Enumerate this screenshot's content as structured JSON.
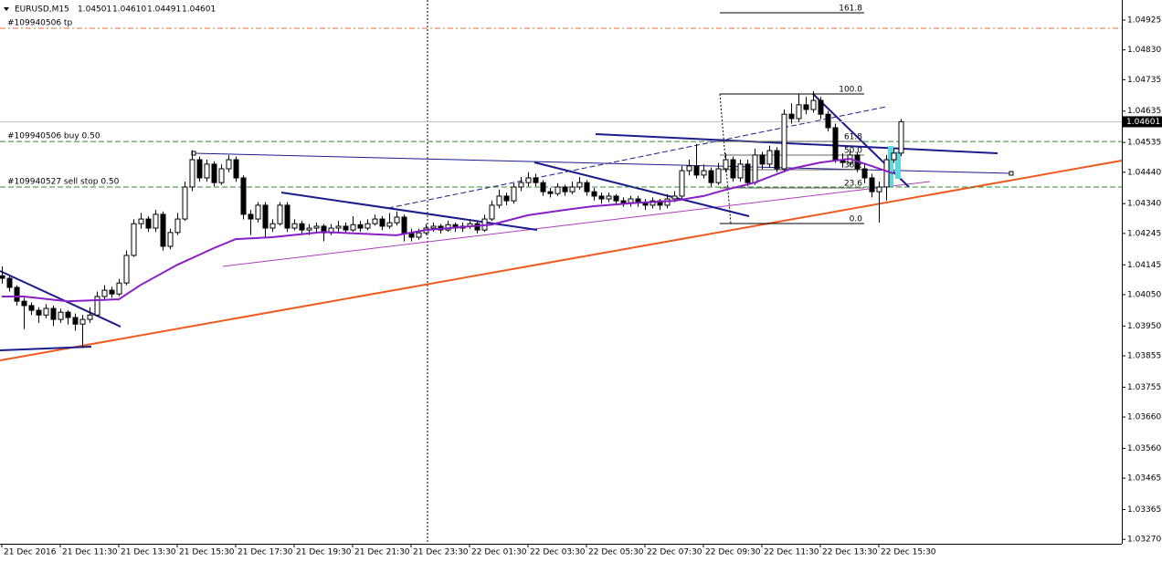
{
  "chart_data": {
    "type": "candlestick",
    "header": {
      "symbol": "EURUSD,M15",
      "ohlc": [
        "1.04501",
        "1.04610",
        "1.04491",
        "1.04601"
      ]
    },
    "up_color": "#ffffff",
    "down_color": "#000000",
    "wick_color": "#000000",
    "ylim": [
      1.03256,
      1.04989
    ],
    "yticks": [
      1.04925,
      {
        "value": 1.0483,
        "label": "1.04830"
      },
      1.04735,
      1.04635,
      1.04535,
      {
        "value": 1.0444,
        "label": "1.04440"
      },
      {
        "value": 1.0434,
        "label": "1.04340"
      },
      1.04245,
      1.04145,
      {
        "value": 1.0405,
        "label": "1.04050"
      },
      {
        "value": 1.0395,
        "label": "1.03950"
      },
      1.03855,
      1.03755,
      {
        "value": 1.0366,
        "label": "1.03660"
      },
      {
        "value": 1.0356,
        "label": "1.03560"
      },
      1.03465,
      1.03365,
      {
        "value": 1.0327,
        "label": "1.03270"
      }
    ],
    "xlim": [
      -0.25,
      153.25
    ],
    "xticks": [
      {
        "value": 0,
        "label": "21 Dec 2016"
      },
      {
        "value": 8,
        "label": "21 Dec 11:30"
      },
      {
        "value": 16,
        "label": "21 Dec 13:30"
      },
      {
        "value": 24,
        "label": "21 Dec 15:30"
      },
      {
        "value": 32,
        "label": "21 Dec 17:30"
      },
      {
        "value": 40,
        "label": "21 Dec 19:30"
      },
      {
        "value": 48,
        "label": "21 Dec 21:30"
      },
      {
        "value": 56,
        "label": "21 Dec 23:30"
      },
      {
        "value": 64,
        "label": "22 Dec 01:30"
      },
      {
        "value": 72,
        "label": "22 Dec 03:30"
      },
      {
        "value": 80,
        "label": "22 Dec 05:30"
      },
      {
        "value": 88,
        "label": "22 Dec 07:30"
      },
      {
        "value": 96,
        "label": "22 Dec 09:30"
      },
      {
        "value": 104,
        "label": "22 Dec 11:30"
      },
      {
        "value": 112,
        "label": "22 Dec 13:30"
      },
      {
        "value": 120,
        "label": "22 Dec 15:30"
      }
    ],
    "grid": false,
    "bid": 1.04601,
    "orders": [
      {
        "label": "#109940506 tp",
        "price": 1.04899,
        "color": "#e07030"
      },
      {
        "label": "#109940506 buy 0.50",
        "price": 1.04538,
        "color": "#2e8b2e"
      },
      {
        "label": "#109940527 sell stop 0.50",
        "price": 1.04393,
        "color": "#2e8b2e"
      }
    ],
    "fibo_levels": [
      "161.8",
      "100.0",
      "61.8",
      "50.0",
      "38.2",
      "23.6",
      "0.0"
    ],
    "ma": {
      "color": "#8a1ec8",
      "x": [
        0,
        3,
        9,
        16,
        19,
        24,
        29,
        32,
        37,
        44,
        54,
        58,
        67,
        72,
        77,
        81,
        87,
        92,
        96,
        99,
        103,
        108,
        112,
        116,
        119,
        122
      ],
      "values": [
        1.04044,
        1.04044,
        1.04029,
        1.04035,
        1.04081,
        1.04145,
        1.04198,
        1.04227,
        1.04233,
        1.0425,
        1.04239,
        1.04256,
        1.04273,
        1.04303,
        1.0432,
        1.04332,
        1.04343,
        1.04349,
        1.04364,
        1.04384,
        1.04407,
        1.04451,
        1.04471,
        1.04483,
        1.0446,
        1.04436
      ]
    },
    "candles": [
      [
        1.0411,
        1.0414,
        1.04085,
        1.04102
      ],
      [
        1.04102,
        1.0411,
        1.0406,
        1.04073
      ],
      [
        1.04073,
        1.0408,
        1.04015,
        1.04029
      ],
      [
        1.04029,
        1.0404,
        1.0394,
        1.04015
      ],
      [
        1.04015,
        1.04025,
        1.03985,
        1.04
      ],
      [
        1.04,
        1.0401,
        1.0396,
        1.03985
      ],
      [
        1.03985,
        1.0402,
        1.03975,
        1.04006
      ],
      [
        1.04006,
        1.04015,
        1.0395,
        1.03971
      ],
      [
        1.03971,
        1.04005,
        1.0396,
        1.03994
      ],
      [
        1.03994,
        1.04,
        1.03955,
        1.03977
      ],
      [
        1.03977,
        1.0399,
        1.03935,
        1.03956
      ],
      [
        1.03956,
        1.03985,
        1.0388,
        1.03971
      ],
      [
        1.03971,
        1.0401,
        1.0396,
        1.03985
      ],
      [
        1.03985,
        1.0406,
        1.0398,
        1.04044
      ],
      [
        1.04044,
        1.0408,
        1.0403,
        1.04064
      ],
      [
        1.04064,
        1.04075,
        1.0404,
        1.04052
      ],
      [
        1.04052,
        1.041,
        1.04045,
        1.04087
      ],
      [
        1.04087,
        1.0419,
        1.0408,
        1.04175
      ],
      [
        1.04175,
        1.0429,
        1.0417,
        1.04276
      ],
      [
        1.04276,
        1.0431,
        1.0426,
        1.04291
      ],
      [
        1.04291,
        1.043,
        1.0425,
        1.04262
      ],
      [
        1.04262,
        1.0432,
        1.0425,
        1.04306
      ],
      [
        1.04306,
        1.04315,
        1.0419,
        1.04204
      ],
      [
        1.04204,
        1.0426,
        1.04195,
        1.04248
      ],
      [
        1.04248,
        1.0431,
        1.0424,
        1.04291
      ],
      [
        1.04291,
        1.0441,
        1.04285,
        1.04393
      ],
      [
        1.04393,
        1.0451,
        1.0438,
        1.0448
      ],
      [
        1.0448,
        1.0449,
        1.0441,
        1.04422
      ],
      [
        1.04422,
        1.0448,
        1.0441,
        1.04466
      ],
      [
        1.04466,
        1.04475,
        1.04395,
        1.04407
      ],
      [
        1.04407,
        1.04465,
        1.044,
        1.04451
      ],
      [
        1.04451,
        1.04495,
        1.0444,
        1.0448
      ],
      [
        1.0448,
        1.0449,
        1.0441,
        1.04422
      ],
      [
        1.04422,
        1.0443,
        1.0429,
        1.04306
      ],
      [
        1.04306,
        1.0432,
        1.0424,
        1.04291
      ],
      [
        1.04291,
        1.04345,
        1.0428,
        1.04335
      ],
      [
        1.04335,
        1.04345,
        1.0423,
        1.04262
      ],
      [
        1.04262,
        1.0429,
        1.0425,
        1.04276
      ],
      [
        1.04276,
        1.04345,
        1.0427,
        1.04335
      ],
      [
        1.04335,
        1.04345,
        1.0425,
        1.04262
      ],
      [
        1.04262,
        1.0429,
        1.04255,
        1.04276
      ],
      [
        1.04276,
        1.04285,
        1.04245,
        1.04256
      ],
      [
        1.04256,
        1.04275,
        1.0424,
        1.04262
      ],
      [
        1.04262,
        1.0428,
        1.0425,
        1.04268
      ],
      [
        1.04268,
        1.04275,
        1.0422,
        1.04247
      ],
      [
        1.04247,
        1.04275,
        1.0424,
        1.04262
      ],
      [
        1.04262,
        1.04285,
        1.0425,
        1.04268
      ],
      [
        1.04268,
        1.0428,
        1.04245,
        1.04256
      ],
      [
        1.04256,
        1.043,
        1.0425,
        1.04273
      ],
      [
        1.04273,
        1.04285,
        1.0425,
        1.04262
      ],
      [
        1.04262,
        1.0429,
        1.04255,
        1.04276
      ],
      [
        1.04276,
        1.04305,
        1.0427,
        1.04291
      ],
      [
        1.04291,
        1.043,
        1.04255,
        1.04268
      ],
      [
        1.04268,
        1.0431,
        1.0426,
        1.04279
      ],
      [
        1.04279,
        1.04315,
        1.0427,
        1.04297
      ],
      [
        1.04297,
        1.04305,
        1.0422,
        1.04247
      ],
      [
        1.04247,
        1.0426,
        1.0422,
        1.04233
      ],
      [
        1.04233,
        1.0426,
        1.04225,
        1.04247
      ],
      [
        1.04247,
        1.04275,
        1.0424,
        1.04262
      ],
      [
        1.04262,
        1.0428,
        1.0425,
        1.04268
      ],
      [
        1.04268,
        1.04275,
        1.04245,
        1.04256
      ],
      [
        1.04256,
        1.04285,
        1.0425,
        1.04273
      ],
      [
        1.04273,
        1.0428,
        1.0425,
        1.04262
      ],
      [
        1.04262,
        1.0428,
        1.0425,
        1.04268
      ],
      [
        1.04268,
        1.0429,
        1.0426,
        1.04276
      ],
      [
        1.04276,
        1.04285,
        1.04245,
        1.04256
      ],
      [
        1.04256,
        1.04305,
        1.0425,
        1.04291
      ],
      [
        1.04291,
        1.0435,
        1.04285,
        1.04335
      ],
      [
        1.04335,
        1.04385,
        1.04325,
        1.04364
      ],
      [
        1.04364,
        1.04375,
        1.04335,
        1.04349
      ],
      [
        1.04349,
        1.04405,
        1.0434,
        1.04393
      ],
      [
        1.04393,
        1.04425,
        1.0438,
        1.04407
      ],
      [
        1.04407,
        1.0444,
        1.04395,
        1.04422
      ],
      [
        1.04422,
        1.04435,
        1.04395,
        1.04407
      ],
      [
        1.04407,
        1.04415,
        1.04365,
        1.04378
      ],
      [
        1.04378,
        1.0439,
        1.0436,
        1.04372
      ],
      [
        1.04372,
        1.04405,
        1.04365,
        1.04393
      ],
      [
        1.04393,
        1.044,
        1.04365,
        1.04378
      ],
      [
        1.04378,
        1.0441,
        1.0437,
        1.04393
      ],
      [
        1.04393,
        1.04425,
        1.04385,
        1.04407
      ],
      [
        1.04407,
        1.04415,
        1.04365,
        1.04378
      ],
      [
        1.04378,
        1.0439,
        1.0435,
        1.04364
      ],
      [
        1.04364,
        1.04375,
        1.0434,
        1.04355
      ],
      [
        1.04355,
        1.04375,
        1.04345,
        1.04364
      ],
      [
        1.04364,
        1.0437,
        1.04335,
        1.04349
      ],
      [
        1.04349,
        1.0436,
        1.0433,
        1.04343
      ],
      [
        1.04343,
        1.04365,
        1.0433,
        1.04355
      ],
      [
        1.04355,
        1.04365,
        1.0433,
        1.04343
      ],
      [
        1.04343,
        1.04355,
        1.0432,
        1.04335
      ],
      [
        1.04335,
        1.0436,
        1.04325,
        1.04349
      ],
      [
        1.04349,
        1.04355,
        1.0432,
        1.04335
      ],
      [
        1.04335,
        1.0437,
        1.04325,
        1.04355
      ],
      [
        1.04355,
        1.0438,
        1.04345,
        1.04364
      ],
      [
        1.04364,
        1.0446,
        1.04355,
        1.04445
      ],
      [
        1.04445,
        1.0448,
        1.0443,
        1.0446
      ],
      [
        1.0446,
        1.0453,
        1.0442,
        1.04431
      ],
      [
        1.04431,
        1.04465,
        1.0442,
        1.04445
      ],
      [
        1.04445,
        1.04455,
        1.04395,
        1.04407
      ],
      [
        1.04407,
        1.0447,
        1.044,
        1.04451
      ],
      [
        1.04451,
        1.045,
        1.0444,
        1.0448
      ],
      [
        1.0448,
        1.0449,
        1.0441,
        1.04422
      ],
      [
        1.04422,
        1.0448,
        1.0441,
        1.04466
      ],
      [
        1.04466,
        1.0448,
        1.04395,
        1.04407
      ],
      [
        1.04407,
        1.04515,
        1.044,
        1.04495
      ],
      [
        1.04495,
        1.04505,
        1.0445,
        1.04466
      ],
      [
        1.04466,
        1.04525,
        1.04455,
        1.04509
      ],
      [
        1.04509,
        1.0452,
        1.0444,
        1.04451
      ],
      [
        1.04451,
        1.0464,
        1.04445,
        1.04625
      ],
      [
        1.04625,
        1.0466,
        1.04595,
        1.04611
      ],
      [
        1.04611,
        1.0469,
        1.046,
        1.04655
      ],
      [
        1.04655,
        1.0468,
        1.04625,
        1.0464
      ],
      [
        1.0464,
        1.04698,
        1.0463,
        1.04669
      ],
      [
        1.04669,
        1.0468,
        1.0461,
        1.04625
      ],
      [
        1.04625,
        1.04635,
        1.0457,
        1.04582
      ],
      [
        1.04582,
        1.04595,
        1.0447,
        1.0448
      ],
      [
        1.0448,
        1.045,
        1.04455,
        1.04471
      ],
      [
        1.04471,
        1.0451,
        1.0446,
        1.04495
      ],
      [
        1.04495,
        1.04505,
        1.0444,
        1.04451
      ],
      [
        1.04451,
        1.04465,
        1.04405,
        1.04422
      ],
      [
        1.04422,
        1.04435,
        1.0436,
        1.04378
      ],
      [
        1.04378,
        1.0441,
        1.0428,
        1.04393
      ],
      [
        1.04393,
        1.04495,
        1.0435,
        1.0448
      ],
      [
        1.0448,
        1.04515,
        1.0447,
        1.04501
      ],
      [
        1.04501,
        1.0461,
        1.04491,
        1.04601
      ]
    ]
  }
}
